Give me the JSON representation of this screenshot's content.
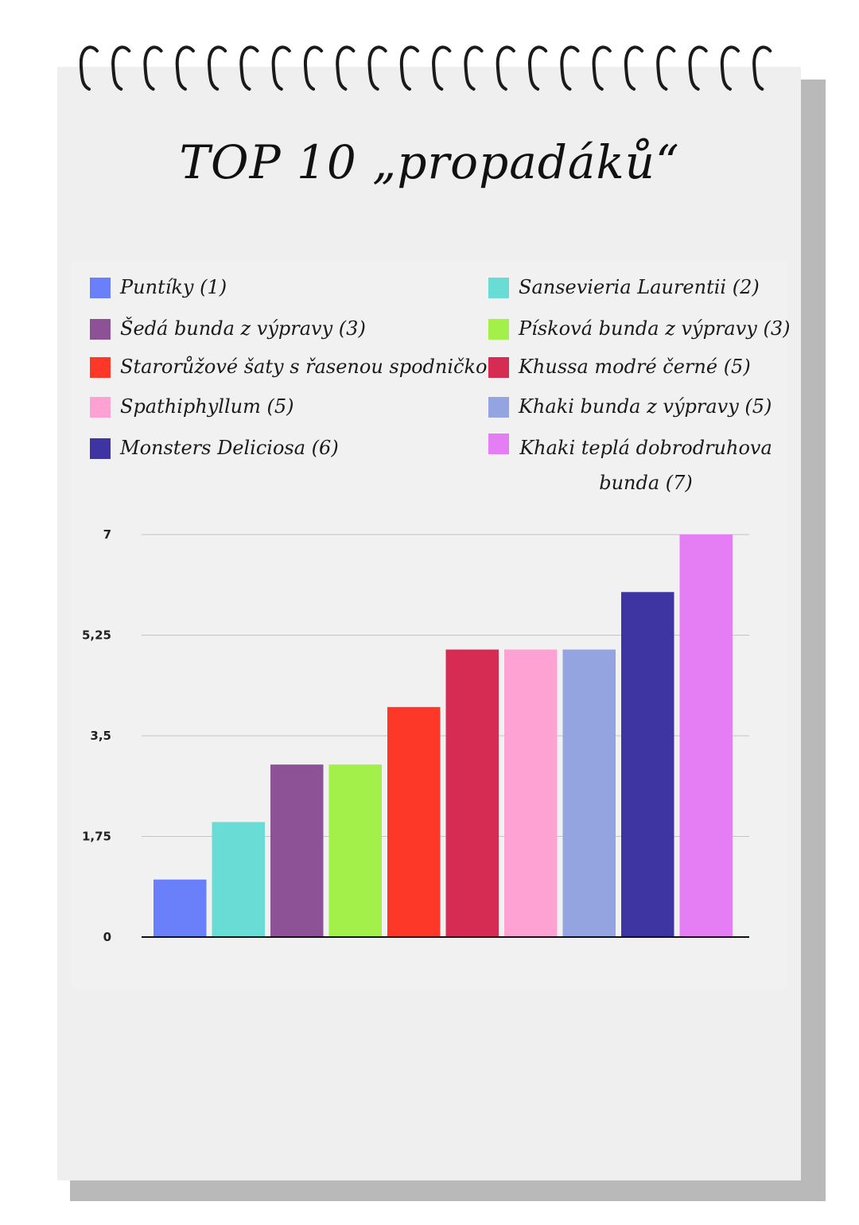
{
  "title": "TOP 10 „propadáků“",
  "chart_data": {
    "type": "bar",
    "title": "TOP 10 „propadáků“",
    "categories": [
      "Puntíky (1)",
      "Sansevieria Laurentii (2)",
      "Šedá bunda z výpravy (3)",
      "Písková bunda z výpravy (3)",
      "Starorůžové šaty s řasenou spodničkou",
      "Khussa modré černé (5)",
      "Spathiphyllum (5)",
      "Khaki bunda z výpravy (5)",
      "Monsters Deliciosa (6)",
      "Khaki teplá dobrodruhova bunda (7)"
    ],
    "values": [
      1,
      2,
      3,
      3,
      4,
      5,
      5,
      5,
      6,
      7
    ],
    "colors": [
      "#6a80fb",
      "#68dcd5",
      "#8d5196",
      "#a3f04a",
      "#fd3829",
      "#d62c53",
      "#fea1d3",
      "#94a4e1",
      "#3e35a3",
      "#e57ef5"
    ],
    "ylim": [
      0,
      7
    ],
    "yticks": [
      0,
      1.75,
      3.5,
      5.25,
      7
    ],
    "ytick_labels": [
      "0",
      "1,75",
      "3,5",
      "5,25",
      "7"
    ],
    "grid": true,
    "legend_position": "top"
  },
  "legend": [
    {
      "label": "Puntíky (1)",
      "color": "#6a80fb"
    },
    {
      "label": "Sansevieria Laurentii (2)",
      "color": "#68dcd5"
    },
    {
      "label": "Šedá bunda z výpravy (3)",
      "color": "#8d5196"
    },
    {
      "label": "Písková bunda z výpravy (3)",
      "color": "#a3f04a"
    },
    {
      "label": "Starorůžové šaty s řasenou spodničkou",
      "color": "#fd3829"
    },
    {
      "label": "Khussa modré černé (5)",
      "color": "#d62c53"
    },
    {
      "label": "Spathiphyllum (5)",
      "color": "#fea1d3"
    },
    {
      "label": "Khaki bunda z výpravy (5)",
      "color": "#94a4e1"
    },
    {
      "label": "Monsters Deliciosa (6)",
      "color": "#3e35a3"
    },
    {
      "label": "Khaki teplá dobrodruhova bunda (7)",
      "color": "#e57ef5"
    }
  ]
}
